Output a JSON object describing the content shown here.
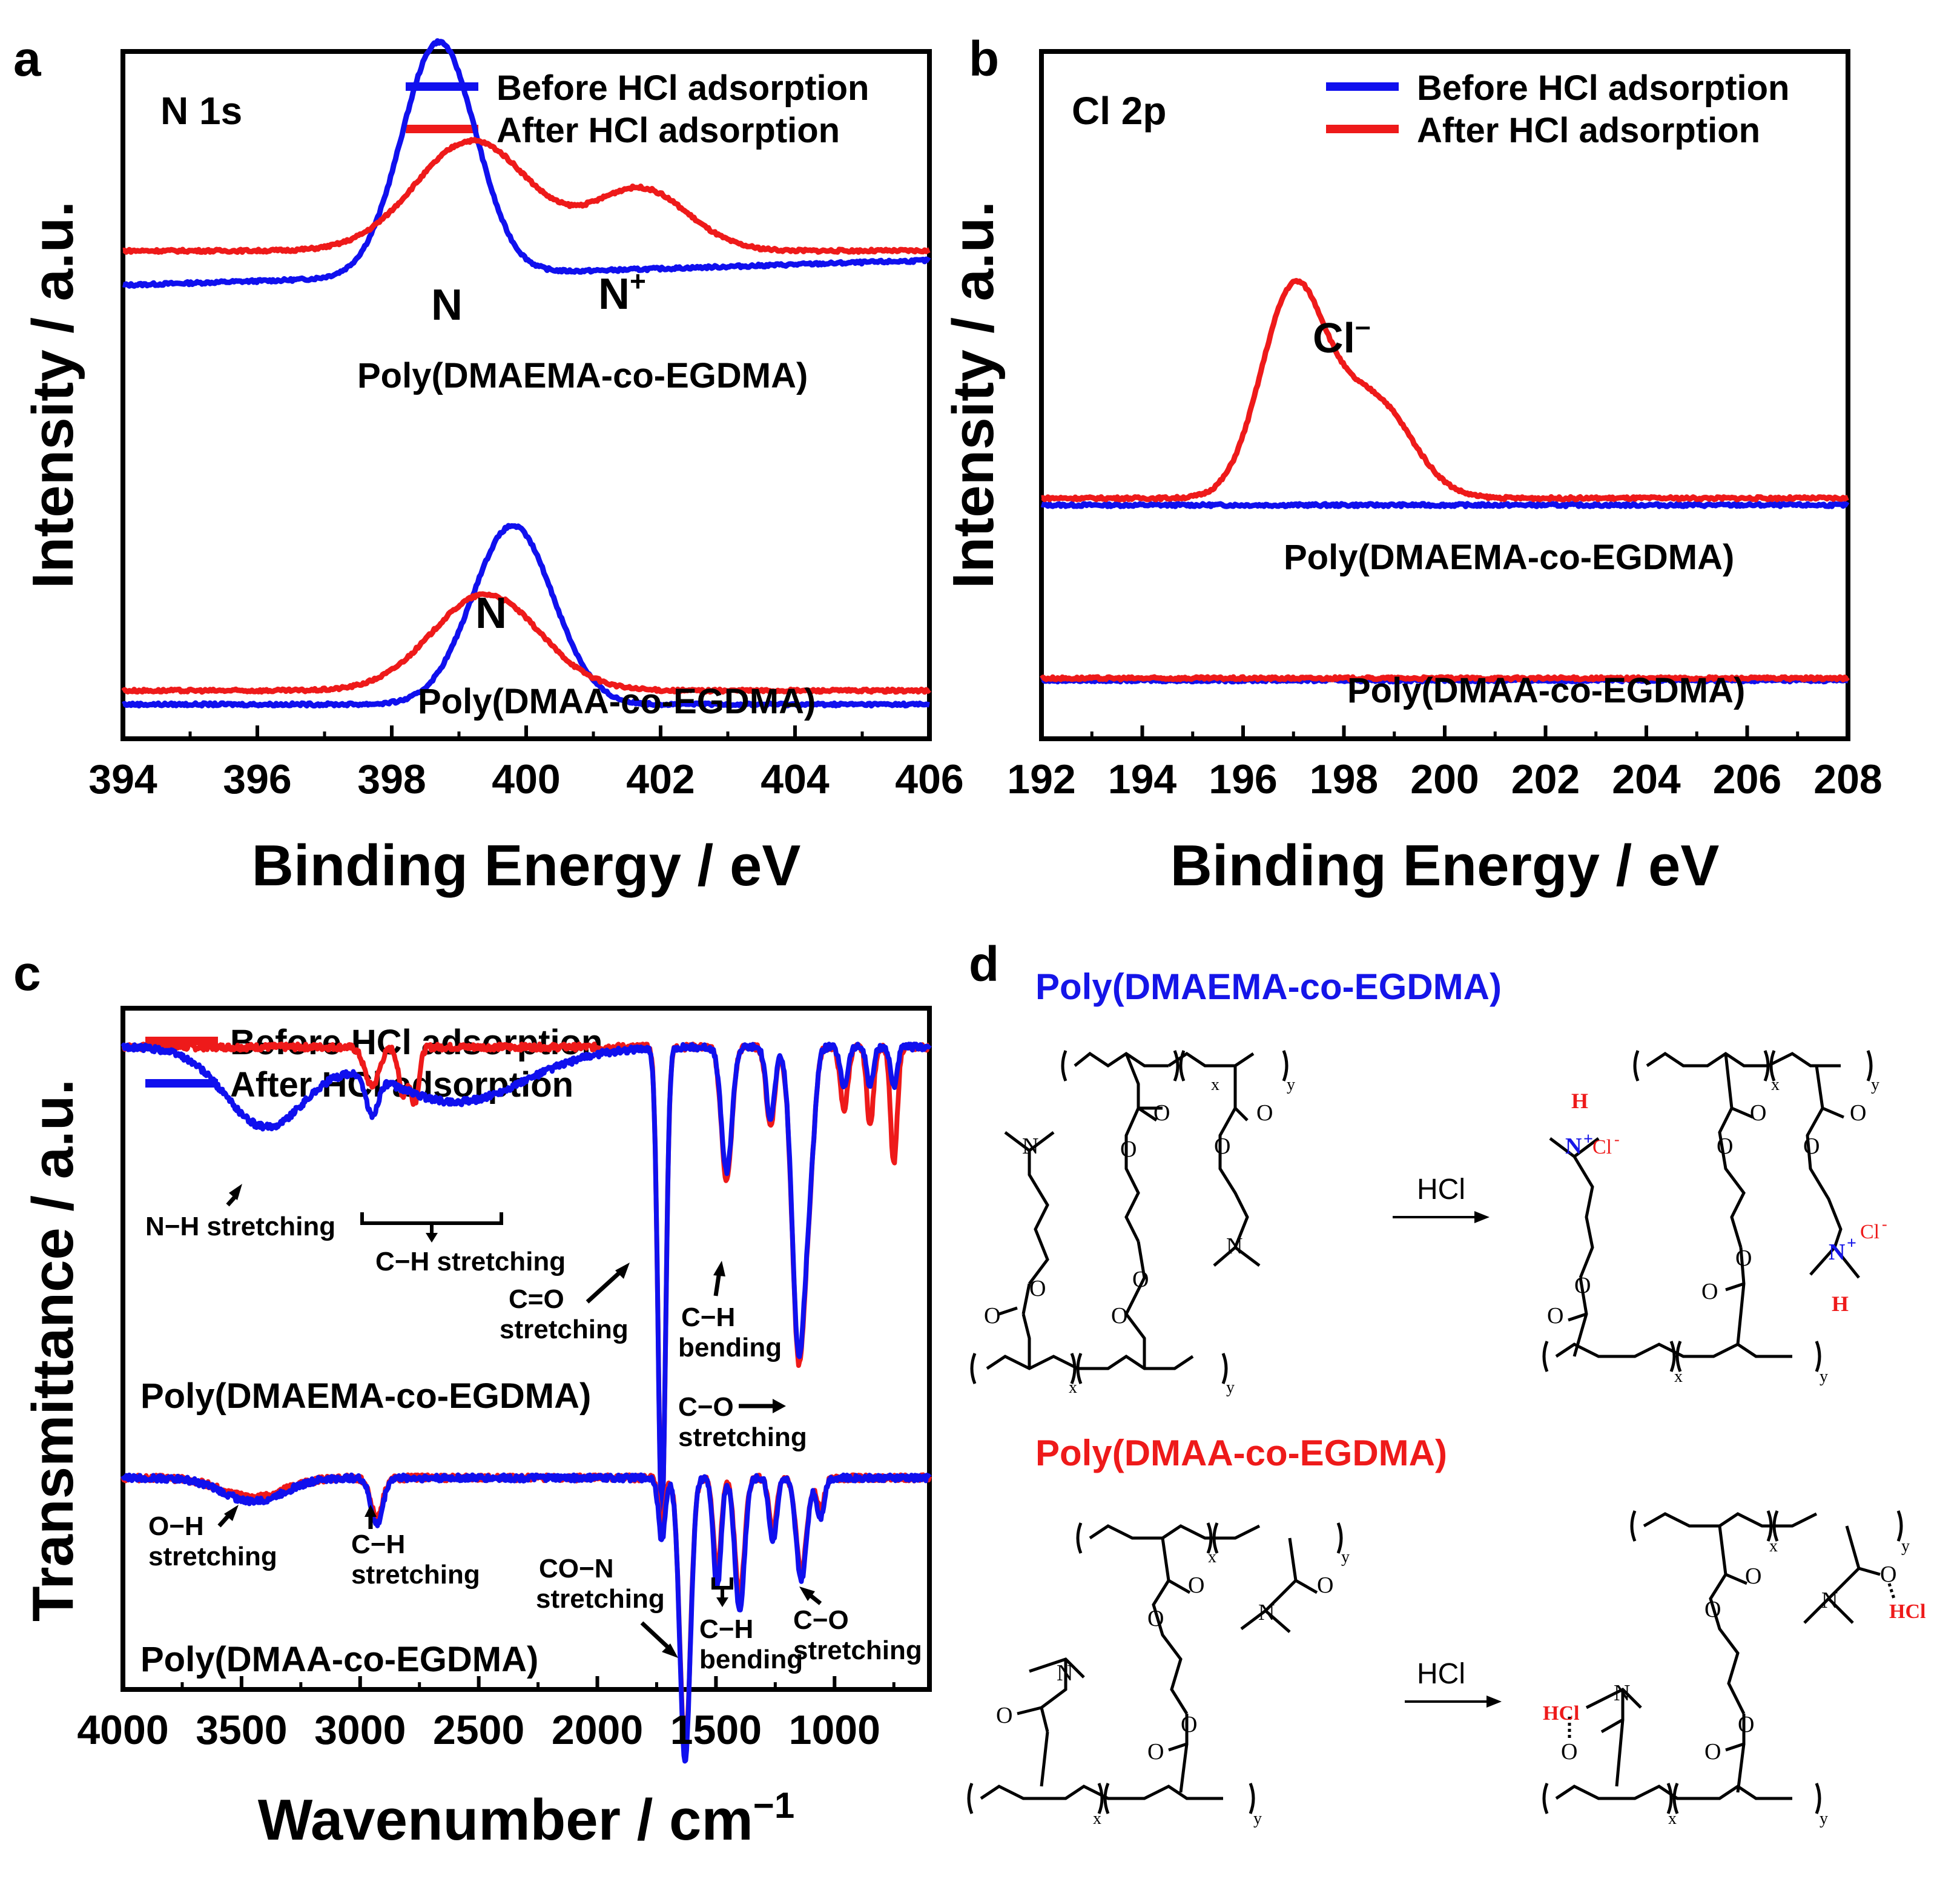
{
  "colors": {
    "blue": "#1010ee",
    "red": "#ee1a1a",
    "axis": "#000000"
  },
  "panels": {
    "a": {
      "letter": "a",
      "tag": "N 1s",
      "ylabel": "Intensity / a.u.",
      "xlabel": "Binding Energy / eV",
      "legend": [
        "Before HCl adsorption",
        "After HCl adsorption"
      ],
      "sample_top": "Poly(DMAEMA-co-EGDMA)",
      "sample_bottom": "Poly(DMAA-co-EGDMA)",
      "peak_n": "N",
      "peak_nplus": "N",
      "peak_nplus_sup": "+",
      "peak_n2": "N"
    },
    "b": {
      "letter": "b",
      "tag": "Cl 2p",
      "ylabel": "Intensity / a.u.",
      "xlabel": "Binding Energy / eV",
      "legend": [
        "Before HCl adsorption",
        "After HCl adsorption"
      ],
      "sample_top": "Poly(DMAEMA-co-EGDMA)",
      "sample_bottom": "Poly(DMAA-co-EGDMA)",
      "peak_cl": "Cl",
      "peak_cl_sup": "–"
    },
    "c": {
      "letter": "c",
      "ylabel": "Transmittance / a.u.",
      "xlabel": "Wavenumber / cm",
      "xlabel_sup": "−1",
      "legend": [
        "Before HCl adsorption",
        "After HCl adsorption"
      ],
      "sample_top": "Poly(DMAEMA-co-EGDMA)",
      "sample_bottom": "Poly(DMAA-co-EGDMA)",
      "ann": {
        "nh": "N−H stretching",
        "ch": "C−H stretching",
        "co1": "C=O",
        "co2": "stretching",
        "chb1": "C−H",
        "chb2": "bending",
        "cso1": "C−O",
        "cso2": "stretching",
        "oh1": "O−H",
        "oh2": "stretching",
        "ch2a": "C−H",
        "ch2b": "stretching",
        "con1": "CO−N",
        "con2": "stretching",
        "chb3": "C−H",
        "chb4": "bending",
        "cso3": "C−O",
        "cso4": "stretching"
      }
    },
    "d": {
      "letter": "d",
      "title_top": "Poly(DMAEMA-co-EGDMA)",
      "title_bottom": "Poly(DMAA-co-EGDMA)",
      "reagent": "HCl",
      "x": "x",
      "y": "y",
      "O": "O",
      "N": "N",
      "H": "H",
      "Cl": "Cl",
      "HClt": "HCl"
    }
  },
  "chart_data": [
    {
      "panel": "a",
      "type": "line",
      "title": "N 1s",
      "xlabel": "Binding Energy / eV",
      "ylabel": "Intensity / a.u.",
      "xlim": [
        394,
        406
      ],
      "xticks": [
        394,
        396,
        398,
        400,
        402,
        404,
        406
      ],
      "series": [
        {
          "name": "Before HCl adsorption",
          "sample": "Poly(DMAEMA-co-EGDMA)",
          "color": "blue",
          "baseline": 0.66,
          "slope": 0.0015,
          "peaks": [
            [
              398.7,
              0.34,
              0.55
            ]
          ]
        },
        {
          "name": "After HCl adsorption",
          "sample": "Poly(DMAEMA-co-EGDMA)",
          "color": "red",
          "baseline": 0.71,
          "slope": 0.0,
          "peaks": [
            [
              399.2,
              0.16,
              0.85
            ],
            [
              401.7,
              0.09,
              0.7
            ]
          ]
        },
        {
          "name": "Before HCl adsorption",
          "sample": "Poly(DMAA-co-EGDMA)",
          "color": "blue",
          "baseline": 0.05,
          "slope": 0.0,
          "peaks": [
            [
              399.8,
              0.26,
              0.6
            ]
          ]
        },
        {
          "name": "After HCl adsorption",
          "sample": "Poly(DMAA-co-EGDMA)",
          "color": "red",
          "baseline": 0.07,
          "slope": 0.0,
          "peaks": [
            [
              399.4,
              0.14,
              0.8
            ]
          ]
        }
      ]
    },
    {
      "panel": "b",
      "type": "line",
      "title": "Cl 2p",
      "xlabel": "Binding Energy / eV",
      "ylabel": "Intensity / a.u.",
      "xlim": [
        192,
        208
      ],
      "xticks": [
        192,
        194,
        196,
        198,
        200,
        202,
        204,
        206,
        208
      ],
      "series": [
        {
          "name": "Before HCl adsorption",
          "sample": "Poly(DMAEMA-co-EGDMA)",
          "color": "blue",
          "baseline": 0.34,
          "slope": 0.0,
          "peaks": []
        },
        {
          "name": "After HCl adsorption",
          "sample": "Poly(DMAEMA-co-EGDMA)",
          "color": "red",
          "baseline": 0.35,
          "slope": 0.0,
          "peaks": [
            [
              197.0,
              0.3,
              0.65
            ],
            [
              198.6,
              0.14,
              0.75
            ]
          ]
        },
        {
          "name": "Before HCl adsorption",
          "sample": "Poly(DMAA-co-EGDMA)",
          "color": "blue",
          "baseline": 0.085,
          "slope": 0.0,
          "peaks": []
        },
        {
          "name": "After HCl adsorption",
          "sample": "Poly(DMAA-co-EGDMA)",
          "color": "red",
          "baseline": 0.088,
          "slope": 0.0,
          "peaks": []
        }
      ]
    },
    {
      "panel": "c",
      "type": "line",
      "title": "",
      "xlabel": "Wavenumber / cm−1",
      "ylabel": "Transmittance / a.u.",
      "xlim": [
        4000,
        600
      ],
      "xticks": [
        4000,
        3500,
        3000,
        2500,
        2000,
        1500,
        1000
      ],
      "series": [
        {
          "name": "Before HCl adsorption",
          "sample": "Poly(DMAEMA-co-EGDMA)",
          "color": "red",
          "baseline": 0.82,
          "dips": [
            [
              2950,
              0.05,
              30
            ],
            [
              2820,
              0.06,
              18
            ],
            [
              2770,
              0.07,
              18
            ],
            [
              1728,
              0.6,
              16
            ],
            [
              1455,
              0.17,
              22
            ],
            [
              1270,
              0.1,
              18
            ],
            [
              1150,
              0.4,
              28
            ],
            [
              1100,
              0.1,
              20
            ],
            [
              960,
              0.08,
              16
            ],
            [
              850,
              0.1,
              14
            ],
            [
              750,
              0.15,
              14
            ]
          ]
        },
        {
          "name": "After HCl adsorption",
          "sample": "Poly(DMAEMA-co-EGDMA)",
          "color": "blue",
          "baseline": 0.82,
          "dips": [
            [
              3400,
              0.1,
              170
            ],
            [
              2950,
              0.05,
              25
            ],
            [
              2600,
              0.07,
              300
            ],
            [
              1728,
              0.6,
              16
            ],
            [
              1455,
              0.16,
              22
            ],
            [
              1270,
              0.09,
              18
            ],
            [
              1150,
              0.39,
              28
            ],
            [
              1100,
              0.1,
              20
            ],
            [
              960,
              0.05,
              16
            ],
            [
              850,
              0.05,
              14
            ],
            [
              750,
              0.05,
              14
            ]
          ]
        },
        {
          "name": "Before HCl adsorption",
          "sample": "Poly(DMAA-co-EGDMA)",
          "color": "red",
          "baseline": 0.27,
          "dips": [
            [
              3450,
              0.025,
              130
            ],
            [
              2930,
              0.05,
              25
            ],
            [
              1728,
              0.06,
              14
            ],
            [
              1630,
              0.35,
              22
            ],
            [
              1495,
              0.12,
              16
            ],
            [
              1400,
              0.15,
              20
            ],
            [
              1260,
              0.07,
              16
            ],
            [
              1140,
              0.12,
              22
            ],
            [
              1060,
              0.04,
              16
            ]
          ]
        },
        {
          "name": "After HCl adsorption",
          "sample": "Poly(DMAA-co-EGDMA)",
          "color": "blue",
          "baseline": 0.27,
          "dips": [
            [
              3450,
              0.03,
              130
            ],
            [
              2930,
              0.06,
              25
            ],
            [
              1728,
              0.08,
              14
            ],
            [
              1630,
              0.36,
              22
            ],
            [
              1495,
              0.14,
              16
            ],
            [
              1400,
              0.17,
              20
            ],
            [
              1260,
              0.08,
              16
            ],
            [
              1140,
              0.13,
              22
            ],
            [
              1060,
              0.05,
              16
            ]
          ]
        }
      ]
    }
  ]
}
